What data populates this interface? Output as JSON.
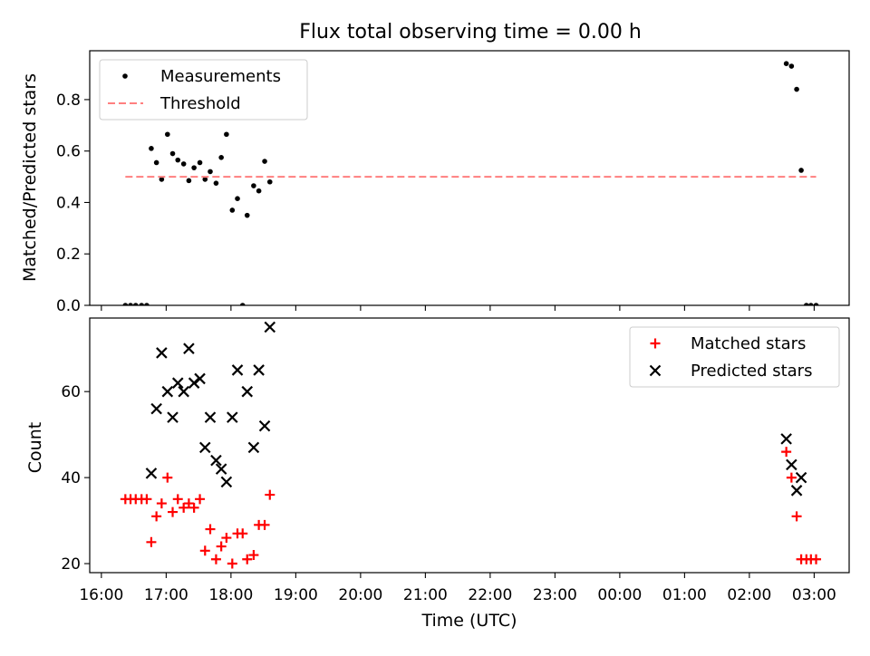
{
  "chart_data": {
    "title": "Flux total observing time = 0.00 h",
    "xlabel": "Time (UTC)",
    "x_ticks": [
      "16:00",
      "17:00",
      "18:00",
      "19:00",
      "20:00",
      "21:00",
      "22:00",
      "23:00",
      "00:00",
      "01:00",
      "02:00",
      "03:00"
    ],
    "xlim_hours": [
      15.82,
      27.54
    ],
    "panels": [
      {
        "type": "scatter",
        "ylabel": "Matched/Predicted stars",
        "ylim": [
          0,
          0.99
        ],
        "yticks": [
          "0.0",
          "0.2",
          "0.4",
          "0.6",
          "0.8"
        ],
        "ytick_values": [
          0,
          0.2,
          0.4,
          0.6,
          0.8
        ],
        "legend_position": "top-left",
        "series": [
          {
            "name": "Measurements",
            "marker": "dot",
            "color": "#000000",
            "x": [
              16.37,
              16.45,
              16.53,
              16.62,
              16.7,
              16.77,
              16.85,
              16.93,
              17.02,
              17.1,
              17.18,
              17.27,
              17.35,
              17.43,
              17.52,
              17.6,
              17.68,
              17.77,
              17.85,
              17.93,
              18.02,
              18.1,
              18.18,
              18.25,
              18.35,
              18.43,
              18.52,
              18.6,
              26.57,
              26.65,
              26.73,
              26.8,
              26.88,
              26.95,
              27.03
            ],
            "y": [
              0.0,
              0.0,
              0.0,
              0.0,
              0.0,
              0.61,
              0.555,
              0.49,
              0.665,
              0.59,
              0.565,
              0.55,
              0.485,
              0.535,
              0.555,
              0.49,
              0.52,
              0.475,
              0.575,
              0.665,
              0.37,
              0.415,
              0.0,
              0.35,
              0.465,
              0.445,
              0.56,
              0.48,
              0.94,
              0.93,
              0.84,
              0.525,
              0.0,
              0.0,
              0.0
            ]
          },
          {
            "name": "Threshold",
            "type": "line",
            "style": "dashed",
            "color": "#ff7f7f",
            "x": [
              16.37,
              27.03
            ],
            "y": [
              0.5,
              0.5
            ]
          }
        ]
      },
      {
        "type": "scatter",
        "ylabel": "Count",
        "ylim": [
          17.9,
          77.1
        ],
        "yticks": [
          "20",
          "40",
          "60"
        ],
        "ytick_values": [
          20,
          40,
          60
        ],
        "legend_position": "top-right",
        "series": [
          {
            "name": "Matched stars",
            "marker": "plus",
            "color": "#ff0000",
            "x": [
              16.37,
              16.45,
              16.53,
              16.62,
              16.7,
              16.77,
              16.85,
              16.93,
              17.02,
              17.1,
              17.18,
              17.27,
              17.35,
              17.43,
              17.52,
              17.6,
              17.68,
              17.77,
              17.85,
              17.93,
              18.02,
              18.1,
              18.18,
              18.25,
              18.35,
              18.43,
              18.52,
              18.6,
              26.57,
              26.65,
              26.73,
              26.8,
              26.88,
              26.95,
              27.03
            ],
            "y": [
              35,
              35,
              35,
              35,
              35,
              25,
              31,
              34,
              40,
              32,
              35,
              33,
              34,
              33,
              35,
              23,
              28,
              21,
              24,
              26,
              20,
              27,
              27,
              21,
              22,
              29,
              29,
              36,
              46,
              40,
              31,
              21,
              21,
              21,
              21
            ]
          },
          {
            "name": "Predicted stars",
            "marker": "x",
            "color": "#000000",
            "x": [
              16.77,
              16.85,
              16.93,
              17.02,
              17.1,
              17.18,
              17.27,
              17.35,
              17.43,
              17.52,
              17.6,
              17.68,
              17.77,
              17.85,
              17.93,
              18.02,
              18.1,
              18.25,
              18.35,
              18.43,
              18.52,
              18.6,
              26.57,
              26.65,
              26.73,
              26.8
            ],
            "y": [
              41,
              56,
              69,
              60,
              54,
              62,
              60,
              70,
              62,
              63,
              47,
              54,
              44,
              42,
              39,
              54,
              65,
              60,
              47,
              65,
              52,
              75,
              49,
              43,
              37,
              40
            ]
          }
        ]
      }
    ]
  }
}
